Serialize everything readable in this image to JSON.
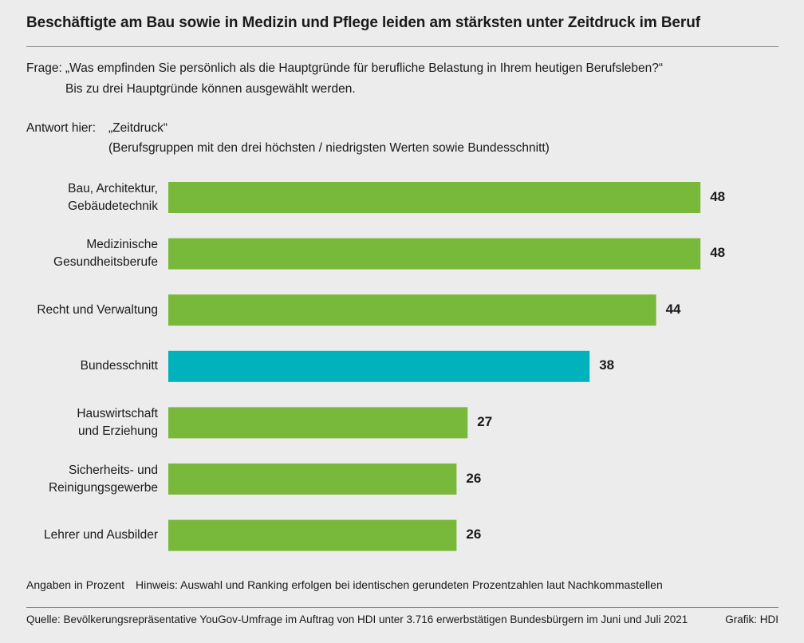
{
  "title": "Beschäftigte am Bau sowie in Medizin und Pflege leiden am stärksten unter Zeitdruck im Beruf",
  "question": {
    "label": "Frage:",
    "line1": "„Was empfinden Sie persönlich als die Hauptgründe für berufliche Belastung in Ihrem heutigen Berufsleben?“",
    "line2": "Bis zu drei Hauptgründe können ausgewählt werden."
  },
  "answer": {
    "label": "Antwort hier:",
    "text": "„Zeitdruck“",
    "subtitle": "(Berufsgruppen mit den drei höchsten / niedrigsten Werten sowie Bundesschnitt)"
  },
  "chart_data": {
    "type": "bar",
    "orientation": "horizontal",
    "categories": [
      "Bau, Architektur,\nGebäudetechnik",
      "Medizinische\nGesundheitsberufe",
      "Recht und Verwaltung",
      "Bundesschnitt",
      "Hauswirtschaft\nund Erziehung",
      "Sicherheits- und\nReinigungsgewerbe",
      "Lehrer und Ausbilder"
    ],
    "values": [
      48,
      48,
      44,
      38,
      27,
      26,
      26
    ],
    "value_labels": [
      "48",
      "48",
      "44",
      "38",
      "27",
      "26",
      "26"
    ],
    "highlight_index": 3,
    "colors": {
      "default": "#78b83a",
      "highlight": "#00b2bc"
    },
    "unit": "Prozent",
    "xlim": [
      0,
      50
    ],
    "grid": false
  },
  "notes": {
    "unit": "Angaben in Prozent",
    "hint": "Hinweis: Auswahl und Ranking erfolgen bei identischen gerundeten Prozentzahlen laut Nachkommastellen"
  },
  "footer": {
    "source": "Quelle: Bevölkerungsrepräsentative YouGov-Umfrage im Auftrag von HDI unter 3.716 erwerbstätigen Bundesbürgern im Juni und Juli 2021",
    "credit": "Grafik: HDI"
  }
}
